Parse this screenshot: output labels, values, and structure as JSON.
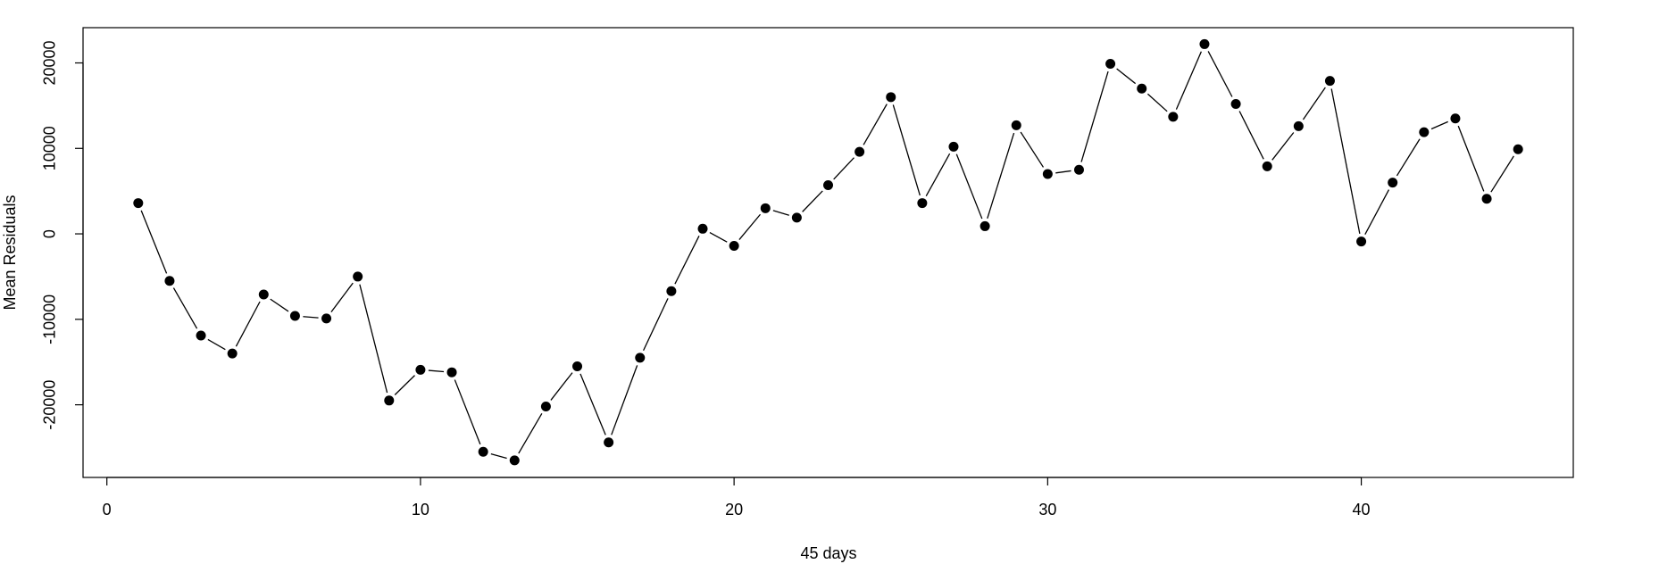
{
  "chart_data": {
    "type": "line",
    "xlabel": "45 days",
    "ylabel": "Mean Residuals",
    "x": [
      1,
      2,
      3,
      4,
      5,
      6,
      7,
      8,
      9,
      10,
      11,
      12,
      13,
      14,
      15,
      16,
      17,
      18,
      19,
      20,
      21,
      22,
      23,
      24,
      25,
      26,
      27,
      28,
      29,
      30,
      31,
      32,
      33,
      34,
      35,
      36,
      37,
      38,
      39,
      40,
      41,
      42,
      43,
      44,
      45
    ],
    "values": [
      3600,
      -5500,
      -11900,
      -14000,
      -7100,
      -9600,
      -9900,
      -5000,
      -19500,
      -15900,
      -16200,
      -25500,
      -26500,
      -20200,
      -15500,
      -24400,
      -14500,
      -6700,
      600,
      -1400,
      3000,
      1900,
      5700,
      9600,
      16000,
      3600,
      10200,
      900,
      12700,
      7000,
      7500,
      19900,
      17000,
      13700,
      22200,
      15200,
      7900,
      12600,
      17900,
      -900,
      6000,
      11900,
      13500,
      4100,
      9900
    ],
    "color": "#000000",
    "xlim": [
      -0.76,
      46.76
    ],
    "xticks": [
      0,
      10,
      20,
      30,
      40
    ],
    "ylim": [
      -28500,
      24125
    ],
    "yticks": [
      -20000,
      -10000,
      0,
      10000,
      20000
    ]
  }
}
